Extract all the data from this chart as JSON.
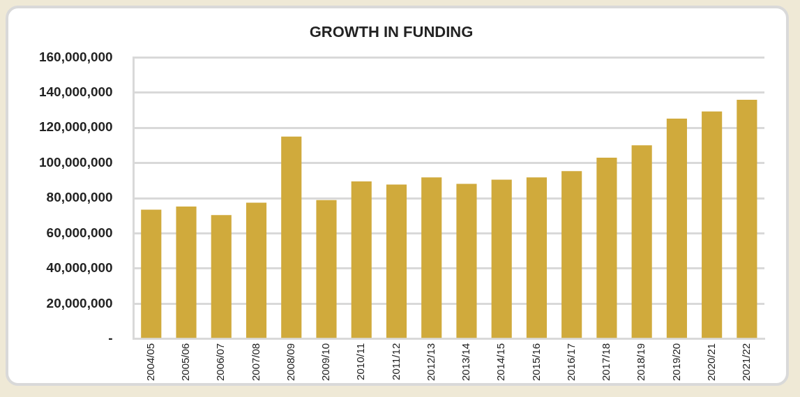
{
  "chart_data": {
    "type": "bar",
    "title": "GROWTH IN FUNDING",
    "categories": [
      "2004/05",
      "2005/06",
      "2006/07",
      "2007/08",
      "2008/09",
      "2009/10",
      "2010/11",
      "2011/12",
      "2012/13",
      "2013/14",
      "2014/15",
      "2015/16",
      "2016/17",
      "2017/18",
      "2018/19",
      "2019/20",
      "2020/21",
      "2021/22"
    ],
    "values": [
      73500000,
      75300000,
      70400000,
      77500000,
      115000000,
      78900000,
      89600000,
      87800000,
      91800000,
      88200000,
      90500000,
      91800000,
      95400000,
      103000000,
      110100000,
      125300000,
      129300000,
      136000000
    ],
    "color": "#d0aa3c",
    "ylim": [
      0,
      160000000
    ],
    "yticks": [
      {
        "value": 0,
        "label": "-"
      },
      {
        "value": 20000000,
        "label": "20,000,000"
      },
      {
        "value": 40000000,
        "label": "40,000,000"
      },
      {
        "value": 60000000,
        "label": "60,000,000"
      },
      {
        "value": 80000000,
        "label": "80,000,000"
      },
      {
        "value": 100000000,
        "label": "100,000,000"
      },
      {
        "value": 120000000,
        "label": "120,000,000"
      },
      {
        "value": 140000000,
        "label": "140,000,000"
      },
      {
        "value": 160000000,
        "label": "160,000,000"
      }
    ],
    "grid": "y",
    "legend": false
  }
}
